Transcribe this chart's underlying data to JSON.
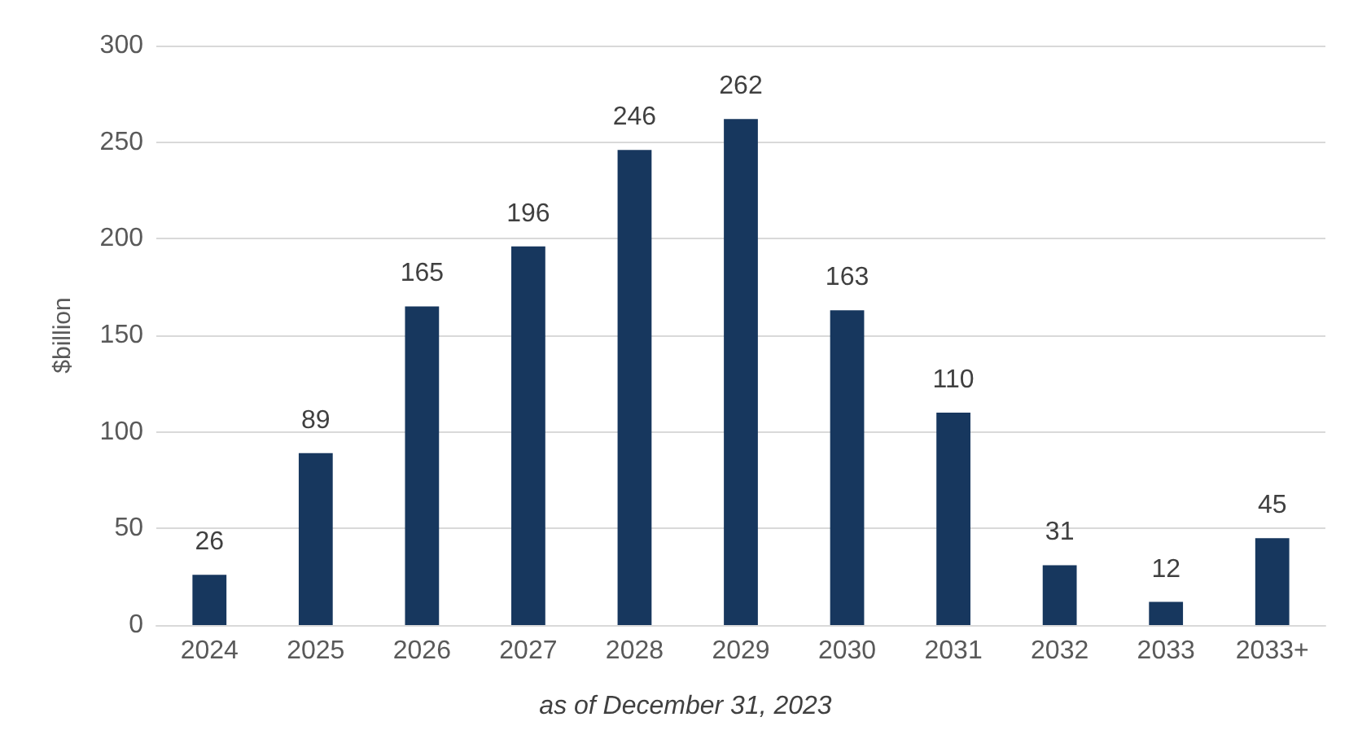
{
  "chart_data": {
    "type": "bar",
    "ylabel": "$billion",
    "categories": [
      "2024",
      "2025",
      "2026",
      "2027",
      "2028",
      "2029",
      "2030",
      "2031",
      "2032",
      "2033",
      "2033+"
    ],
    "values": [
      26,
      89,
      165,
      196,
      246,
      262,
      163,
      110,
      31,
      12,
      45
    ],
    "color": "#17375e",
    "ylim": [
      0,
      300
    ],
    "yticks": [
      0,
      50,
      100,
      150,
      200,
      250,
      300
    ],
    "grid": "y",
    "data_labels": true,
    "annotations": [
      "as of December 31, 2023"
    ]
  }
}
